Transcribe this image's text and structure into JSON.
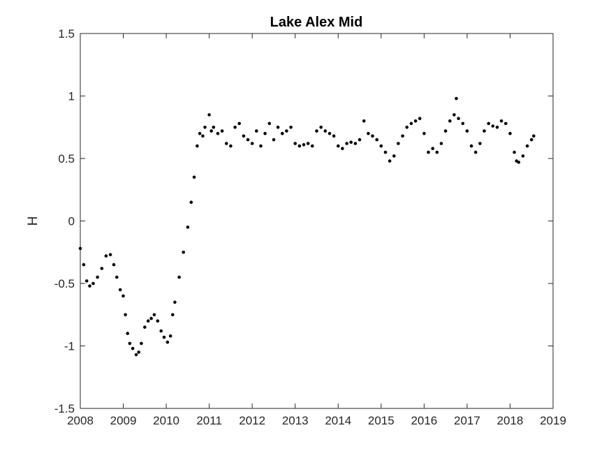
{
  "chart_data": {
    "type": "scatter",
    "title": "Lake Alex Mid",
    "xlabel": "",
    "ylabel": "H",
    "xlim": [
      2008,
      2019
    ],
    "ylim": [
      -1.5,
      1.5
    ],
    "x_ticks": [
      "2008",
      "2009",
      "2010",
      "2011",
      "2012",
      "2013",
      "2014",
      "2015",
      "2016",
      "2017",
      "2018",
      "2019"
    ],
    "y_ticks": [
      "1.5",
      "1",
      "0.5",
      "0",
      "-0.5",
      "-1",
      "-1.5"
    ],
    "grid": false,
    "marker_color": "#000000",
    "series": [
      {
        "x": [
          2008.0,
          2008.08,
          2008.15,
          2008.22,
          2008.3,
          2008.4,
          2008.5,
          2008.6,
          2008.7,
          2008.78,
          2008.85,
          2008.93,
          2009.0,
          2009.05,
          2009.1,
          2009.15,
          2009.22,
          2009.3,
          2009.36,
          2009.42,
          2009.5,
          2009.58,
          2009.65,
          2009.72,
          2009.8,
          2009.88,
          2009.95,
          2010.03,
          2010.1,
          2010.15,
          2010.2,
          2010.3,
          2010.4,
          2010.5,
          2010.58,
          2010.65,
          2010.72,
          2010.78,
          2010.85,
          2010.9,
          2011.0,
          2011.05,
          2011.1,
          2011.2,
          2011.3,
          2011.4,
          2011.5,
          2011.6,
          2011.7,
          2011.8,
          2011.9,
          2012.0,
          2012.1,
          2012.2,
          2012.3,
          2012.4,
          2012.5,
          2012.6,
          2012.7,
          2012.8,
          2012.9,
          2013.0,
          2013.1,
          2013.2,
          2013.3,
          2013.4,
          2013.5,
          2013.6,
          2013.7,
          2013.8,
          2013.9,
          2014.0,
          2014.1,
          2014.2,
          2014.3,
          2014.4,
          2014.5,
          2014.6,
          2014.7,
          2014.8,
          2014.9,
          2015.0,
          2015.1,
          2015.2,
          2015.3,
          2015.4,
          2015.5,
          2015.6,
          2015.7,
          2015.8,
          2015.9,
          2016.0,
          2016.1,
          2016.2,
          2016.3,
          2016.4,
          2016.5,
          2016.6,
          2016.7,
          2016.75,
          2016.8,
          2016.9,
          2017.0,
          2017.1,
          2017.2,
          2017.3,
          2017.4,
          2017.5,
          2017.6,
          2017.7,
          2017.8,
          2017.9,
          2018.0,
          2018.1,
          2018.15,
          2018.2,
          2018.3,
          2018.4,
          2018.5,
          2018.55
        ],
        "y": [
          -0.22,
          -0.35,
          -0.48,
          -0.52,
          -0.5,
          -0.45,
          -0.38,
          -0.28,
          -0.27,
          -0.35,
          -0.45,
          -0.55,
          -0.6,
          -0.75,
          -0.9,
          -0.98,
          -1.02,
          -1.07,
          -1.05,
          -0.98,
          -0.85,
          -0.8,
          -0.78,
          -0.75,
          -0.8,
          -0.88,
          -0.93,
          -0.97,
          -0.92,
          -0.75,
          -0.65,
          -0.45,
          -0.25,
          -0.05,
          0.15,
          0.35,
          0.6,
          0.7,
          0.68,
          0.75,
          0.85,
          0.72,
          0.75,
          0.7,
          0.72,
          0.62,
          0.6,
          0.75,
          0.78,
          0.68,
          0.65,
          0.62,
          0.72,
          0.6,
          0.7,
          0.78,
          0.65,
          0.75,
          0.7,
          0.72,
          0.75,
          0.62,
          0.6,
          0.61,
          0.62,
          0.6,
          0.72,
          0.75,
          0.72,
          0.7,
          0.68,
          0.6,
          0.58,
          0.62,
          0.63,
          0.62,
          0.65,
          0.8,
          0.7,
          0.68,
          0.65,
          0.6,
          0.55,
          0.48,
          0.52,
          0.62,
          0.68,
          0.75,
          0.78,
          0.8,
          0.82,
          0.7,
          0.55,
          0.58,
          0.55,
          0.62,
          0.72,
          0.8,
          0.85,
          0.98,
          0.82,
          0.78,
          0.72,
          0.6,
          0.55,
          0.62,
          0.72,
          0.78,
          0.76,
          0.75,
          0.8,
          0.78,
          0.7,
          0.55,
          0.48,
          0.47,
          0.52,
          0.6,
          0.65,
          0.68
        ]
      }
    ]
  }
}
